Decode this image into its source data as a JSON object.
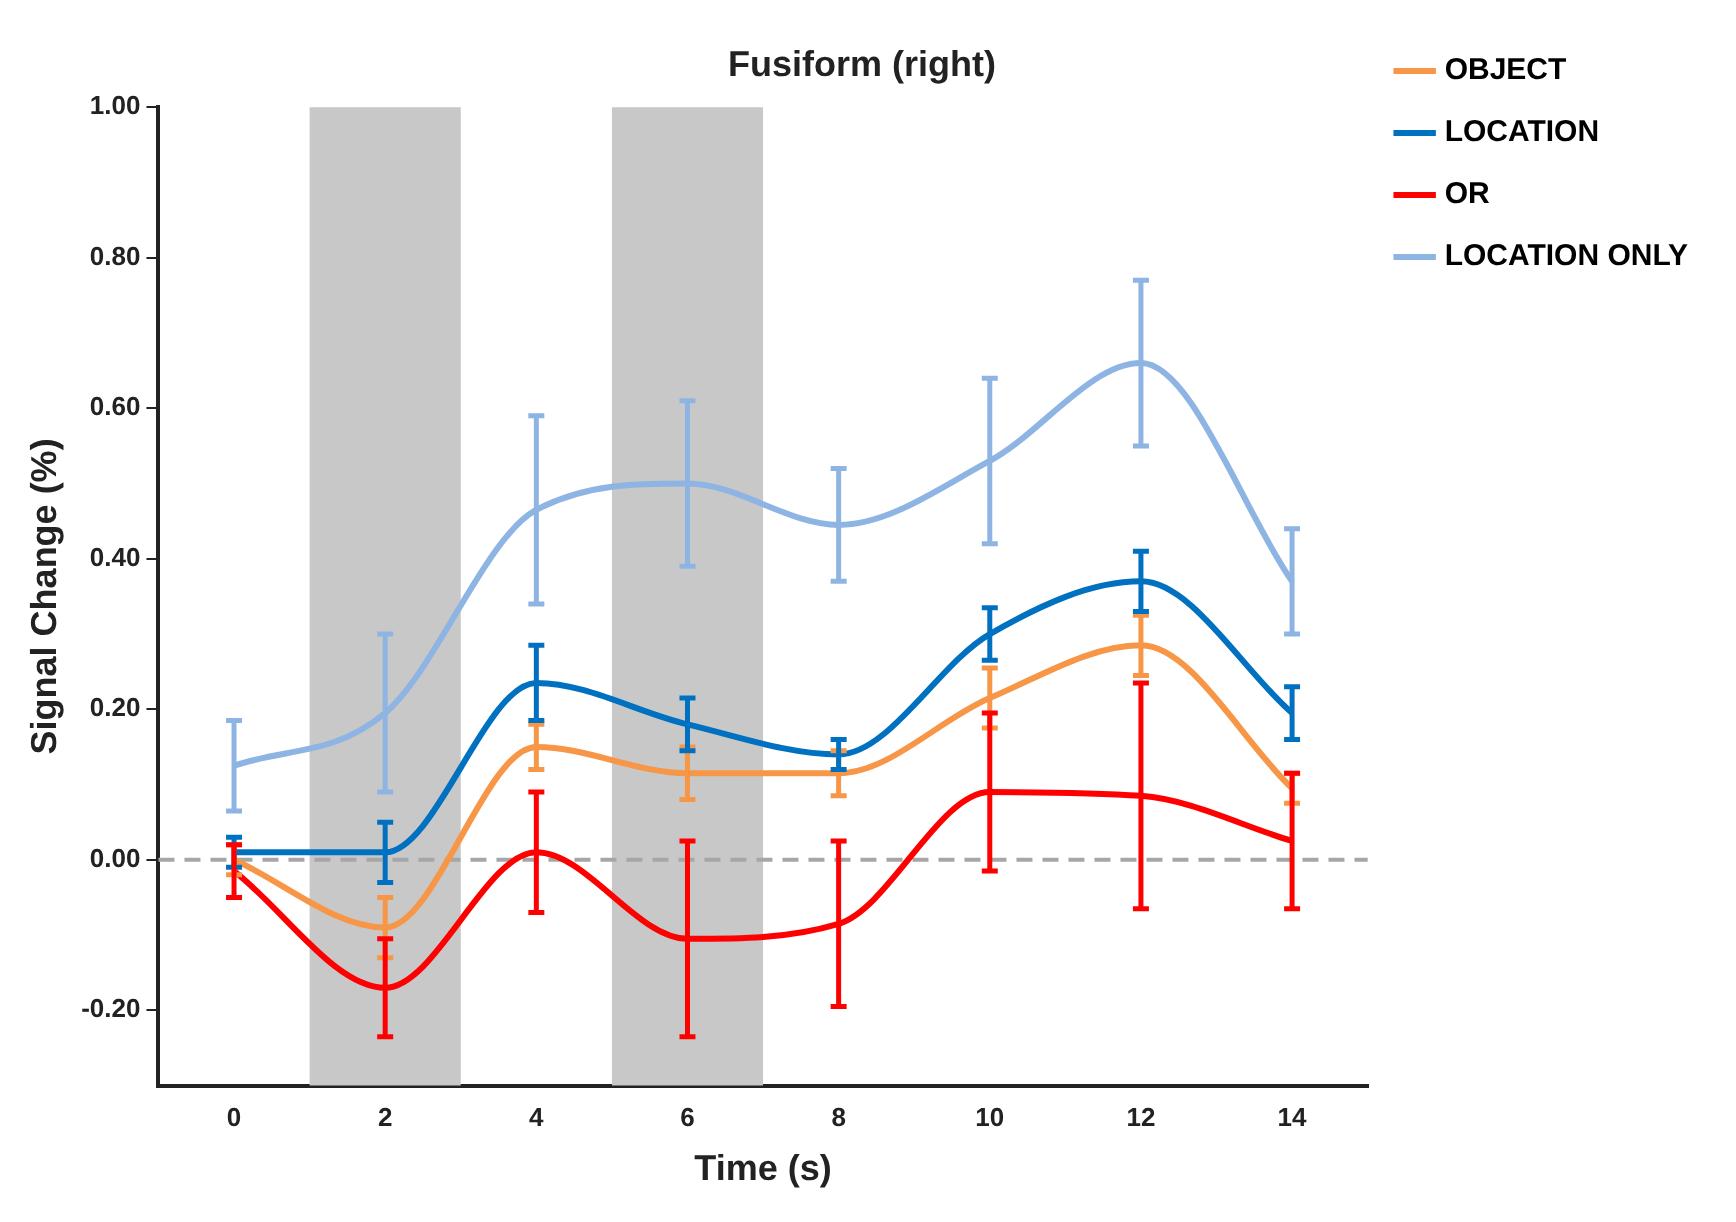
{
  "chart_data": {
    "type": "line",
    "title": "Fusiform (right)",
    "xlabel": "Time (s)",
    "ylabel": "Signal Change (%)",
    "x": [
      0,
      2,
      4,
      6,
      8,
      10,
      12,
      14
    ],
    "series": [
      {
        "name": "OBJECT",
        "color": "#f79646",
        "values": [
          0.0,
          -0.09,
          0.15,
          0.115,
          0.115,
          0.215,
          0.285,
          0.095
        ],
        "errors": [
          0.02,
          0.04,
          0.03,
          0.035,
          0.03,
          0.04,
          0.04,
          0.02
        ]
      },
      {
        "name": "LOCATION",
        "color": "#0070c0",
        "values": [
          0.01,
          0.01,
          0.235,
          0.18,
          0.14,
          0.3,
          0.37,
          0.195
        ],
        "errors": [
          0.02,
          0.04,
          0.05,
          0.035,
          0.02,
          0.035,
          0.04,
          0.035
        ]
      },
      {
        "name": "OR",
        "color": "#ff0000",
        "values": [
          -0.015,
          -0.17,
          0.01,
          -0.105,
          -0.085,
          0.09,
          0.085,
          0.025
        ],
        "errors": [
          0.035,
          0.065,
          0.08,
          0.13,
          0.11,
          0.105,
          0.15,
          0.09
        ]
      },
      {
        "name": "LOCATION ONLY",
        "color": "#8eb4e3",
        "values": [
          0.125,
          0.195,
          0.465,
          0.5,
          0.445,
          0.53,
          0.66,
          0.37
        ],
        "errors": [
          0.06,
          0.105,
          0.125,
          0.11,
          0.075,
          0.11,
          0.11,
          0.07
        ]
      }
    ],
    "xlim": [
      -1,
      15
    ],
    "xticks": [
      0,
      2,
      4,
      6,
      8,
      10,
      12,
      14
    ],
    "ylim": [
      -0.3,
      1.0
    ],
    "yticks": [
      {
        "value": -0.2,
        "label": "-0.20"
      },
      {
        "value": 0,
        "label": "0.00"
      },
      {
        "value": 0.2,
        "label": "0.20"
      },
      {
        "value": 0.4,
        "label": "0.40"
      },
      {
        "value": 0.6,
        "label": "0.60"
      },
      {
        "value": 0.8,
        "label": "0.80"
      },
      {
        "value": 1.0,
        "label": "1.00"
      }
    ],
    "ref_lines": [
      {
        "axis": "y",
        "value": 0,
        "color": "#a6a6a6",
        "line_style": "dashed"
      }
    ],
    "bands": [
      {
        "axis": "x",
        "from": 1,
        "to": 3,
        "color": "#c8c8c8"
      },
      {
        "axis": "x",
        "from": 5,
        "to": 7,
        "color": "#c8c8c8"
      }
    ],
    "grid": false,
    "legend": "top right",
    "marker": "none",
    "line_style": "solid"
  }
}
